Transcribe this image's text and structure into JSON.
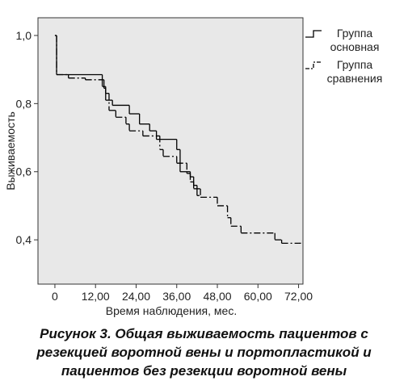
{
  "chart_data": {
    "type": "line",
    "xlabel": "Время наблюдения, мес.",
    "ylabel": "Выживаемость",
    "caption": "Рисунок 3. Общая выживаемость пациентов с резекцией воротной вены и портопластикой и пациентов без резекции воротной вены",
    "xlim": [
      -5,
      73.3
    ],
    "ylim": [
      0.27,
      1.052
    ],
    "xticks": [
      0,
      {
        "value": 12,
        "label": "12,00"
      },
      {
        "value": 24,
        "label": "24,00"
      },
      {
        "value": 36,
        "label": "36,00"
      },
      {
        "value": 48,
        "label": "48,00"
      },
      {
        "value": 60,
        "label": "60,00"
      },
      {
        "value": 72,
        "label": "72,00"
      }
    ],
    "yticks": [
      {
        "value": 0.4,
        "label": "0,4"
      },
      {
        "value": 0.6,
        "label": "0,6"
      },
      {
        "value": 0.8,
        "label": "0,8"
      },
      {
        "value": 1.0,
        "label": "1,0"
      }
    ],
    "step": true,
    "plot_background": "#e8e8e8",
    "series": [
      {
        "name": "Группа основная",
        "color": "#000000",
        "line_style": "solid",
        "x": [
          0,
          0.5,
          14,
          14.5,
          15,
          17,
          22,
          25,
          28,
          30,
          36,
          37,
          40,
          41,
          42
        ],
        "values": [
          1.0,
          0.885,
          0.87,
          0.845,
          0.81,
          0.795,
          0.77,
          0.74,
          0.72,
          0.695,
          0.665,
          0.6,
          0.585,
          0.56,
          0.53
        ]
      },
      {
        "name": "Группа сравнения",
        "color": "#000000",
        "line_style": "dashdot",
        "x": [
          0,
          0.5,
          4,
          9,
          14,
          15,
          16,
          18,
          21,
          22,
          26,
          31,
          32,
          36,
          39,
          40,
          41,
          43,
          48,
          51,
          52,
          55,
          65,
          67,
          72
        ],
        "values": [
          1.0,
          0.885,
          0.875,
          0.87,
          0.85,
          0.83,
          0.78,
          0.76,
          0.74,
          0.72,
          0.705,
          0.665,
          0.645,
          0.625,
          0.595,
          0.57,
          0.55,
          0.525,
          0.5,
          0.465,
          0.44,
          0.42,
          0.4,
          0.39,
          0.39
        ]
      }
    ]
  }
}
